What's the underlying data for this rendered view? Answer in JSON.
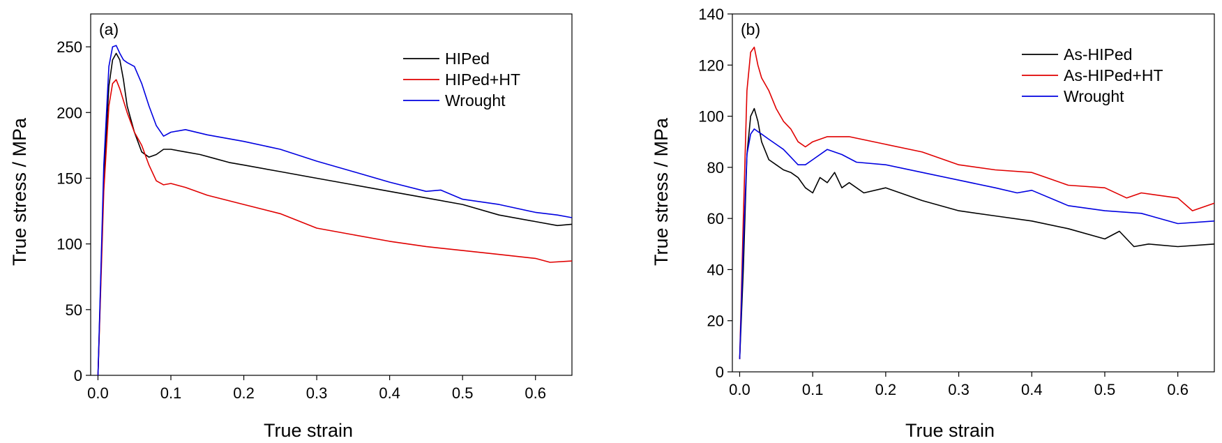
{
  "chart_data": [
    {
      "type": "line",
      "panel_label": "(a)",
      "xlabel": "True strain",
      "ylabel": "True stress / MPa",
      "xlim": [
        -0.01,
        0.65
      ],
      "ylim": [
        0,
        275
      ],
      "xticks": [
        0.0,
        0.1,
        0.2,
        0.3,
        0.4,
        0.5,
        0.6
      ],
      "xtick_labels": [
        "0.0",
        "0.1",
        "0.2",
        "0.3",
        "0.4",
        "0.5",
        "0.6"
      ],
      "yticks": [
        0,
        50,
        100,
        150,
        200,
        250
      ],
      "ytick_labels": [
        "0",
        "50",
        "100",
        "150",
        "200",
        "250"
      ],
      "grid": false,
      "legend_position": "top-right",
      "series": [
        {
          "name": "HIPed",
          "color": "#000000",
          "x": [
            0.0,
            0.008,
            0.015,
            0.02,
            0.025,
            0.03,
            0.035,
            0.04,
            0.05,
            0.06,
            0.07,
            0.08,
            0.09,
            0.1,
            0.12,
            0.14,
            0.16,
            0.18,
            0.2,
            0.25,
            0.3,
            0.35,
            0.4,
            0.45,
            0.5,
            0.55,
            0.6,
            0.63,
            0.65
          ],
          "y": [
            0,
            150,
            220,
            240,
            245,
            240,
            225,
            205,
            185,
            170,
            166,
            168,
            172,
            172,
            170,
            168,
            165,
            162,
            160,
            155,
            150,
            145,
            140,
            135,
            130,
            122,
            117,
            114,
            115
          ]
        },
        {
          "name": "HIPed+HT",
          "color": "#e00000",
          "x": [
            0.0,
            0.008,
            0.015,
            0.02,
            0.025,
            0.03,
            0.04,
            0.05,
            0.06,
            0.07,
            0.08,
            0.09,
            0.1,
            0.12,
            0.15,
            0.2,
            0.25,
            0.3,
            0.35,
            0.4,
            0.45,
            0.5,
            0.55,
            0.6,
            0.62,
            0.65
          ],
          "y": [
            0,
            140,
            205,
            222,
            225,
            218,
            200,
            185,
            175,
            160,
            148,
            145,
            146,
            143,
            137,
            130,
            123,
            112,
            107,
            102,
            98,
            95,
            92,
            89,
            86,
            87
          ]
        },
        {
          "name": "Wrought",
          "color": "#0000e0",
          "x": [
            0.0,
            0.008,
            0.015,
            0.02,
            0.025,
            0.03,
            0.035,
            0.04,
            0.05,
            0.06,
            0.07,
            0.08,
            0.09,
            0.1,
            0.12,
            0.15,
            0.2,
            0.25,
            0.3,
            0.35,
            0.4,
            0.45,
            0.47,
            0.5,
            0.55,
            0.6,
            0.63,
            0.65
          ],
          "y": [
            0,
            160,
            235,
            250,
            251,
            245,
            240,
            238,
            235,
            222,
            205,
            190,
            182,
            185,
            187,
            183,
            178,
            172,
            163,
            155,
            147,
            140,
            141,
            134,
            130,
            124,
            122,
            120
          ]
        }
      ]
    },
    {
      "type": "line",
      "panel_label": "(b)",
      "xlabel": "True strain",
      "ylabel": "True stress / MPa",
      "xlim": [
        -0.01,
        0.65
      ],
      "ylim": [
        0,
        140
      ],
      "xticks": [
        0.0,
        0.1,
        0.2,
        0.3,
        0.4,
        0.5,
        0.6
      ],
      "xtick_labels": [
        "0.0",
        "0.1",
        "0.2",
        "0.3",
        "0.4",
        "0.5",
        "0.6"
      ],
      "yticks": [
        0,
        20,
        40,
        60,
        80,
        100,
        120,
        140
      ],
      "ytick_labels": [
        "0",
        "20",
        "40",
        "60",
        "80",
        "100",
        "120",
        "140"
      ],
      "grid": false,
      "legend_position": "top-right",
      "series": [
        {
          "name": "As-HIPed",
          "color": "#000000",
          "x": [
            0.0,
            0.005,
            0.01,
            0.015,
            0.02,
            0.025,
            0.03,
            0.04,
            0.05,
            0.06,
            0.07,
            0.08,
            0.09,
            0.1,
            0.11,
            0.12,
            0.13,
            0.14,
            0.15,
            0.17,
            0.2,
            0.25,
            0.3,
            0.35,
            0.4,
            0.45,
            0.5,
            0.52,
            0.54,
            0.56,
            0.6,
            0.65
          ],
          "y": [
            5,
            40,
            85,
            100,
            103,
            98,
            90,
            83,
            81,
            79,
            78,
            76,
            72,
            70,
            76,
            74,
            78,
            72,
            74,
            70,
            72,
            67,
            63,
            61,
            59,
            56,
            52,
            55,
            49,
            50,
            49,
            50
          ]
        },
        {
          "name": "As-HIPed+HT",
          "color": "#e00000",
          "x": [
            0.0,
            0.005,
            0.01,
            0.015,
            0.02,
            0.025,
            0.03,
            0.04,
            0.05,
            0.06,
            0.07,
            0.08,
            0.09,
            0.1,
            0.12,
            0.15,
            0.2,
            0.25,
            0.3,
            0.35,
            0.4,
            0.45,
            0.5,
            0.53,
            0.55,
            0.6,
            0.62,
            0.65
          ],
          "y": [
            5,
            60,
            110,
            125,
            127,
            120,
            115,
            110,
            103,
            98,
            95,
            90,
            88,
            90,
            92,
            92,
            89,
            86,
            81,
            79,
            78,
            73,
            72,
            68,
            70,
            68,
            63,
            66
          ]
        },
        {
          "name": "Wrought",
          "color": "#0000e0",
          "x": [
            0.0,
            0.005,
            0.01,
            0.015,
            0.02,
            0.025,
            0.03,
            0.04,
            0.05,
            0.06,
            0.07,
            0.08,
            0.09,
            0.1,
            0.12,
            0.14,
            0.16,
            0.2,
            0.25,
            0.3,
            0.35,
            0.38,
            0.4,
            0.45,
            0.5,
            0.55,
            0.6,
            0.65
          ],
          "y": [
            5,
            50,
            85,
            93,
            95,
            94,
            93,
            91,
            89,
            87,
            84,
            81,
            81,
            83,
            87,
            85,
            82,
            81,
            78,
            75,
            72,
            70,
            71,
            65,
            63,
            62,
            58,
            59
          ]
        }
      ]
    }
  ]
}
